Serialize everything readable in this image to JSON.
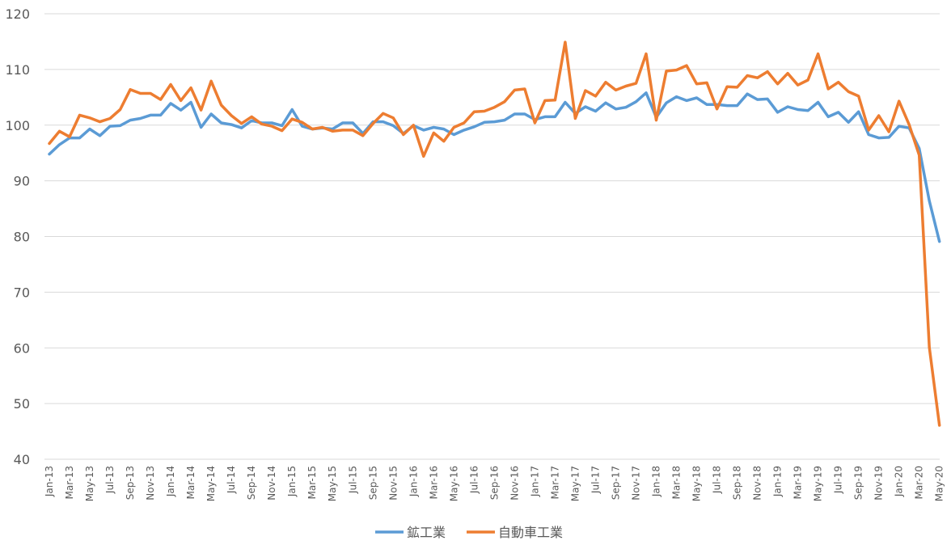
{
  "chart_data": {
    "type": "line",
    "title": "",
    "xlabel": "",
    "ylabel": "",
    "ylim": [
      40,
      120
    ],
    "yticks": [
      40,
      50,
      60,
      70,
      80,
      90,
      100,
      110,
      120
    ],
    "grid": true,
    "legend_position": "bottom",
    "x": [
      "Jan-13",
      "Feb-13",
      "Mar-13",
      "Apr-13",
      "May-13",
      "Jun-13",
      "Jul-13",
      "Aug-13",
      "Sep-13",
      "Oct-13",
      "Nov-13",
      "Dec-13",
      "Jan-14",
      "Feb-14",
      "Mar-14",
      "Apr-14",
      "May-14",
      "Jun-14",
      "Jul-14",
      "Aug-14",
      "Sep-14",
      "Oct-14",
      "Nov-14",
      "Dec-14",
      "Jan-15",
      "Feb-15",
      "Mar-15",
      "Apr-15",
      "May-15",
      "Jun-15",
      "Jul-15",
      "Aug-15",
      "Sep-15",
      "Oct-15",
      "Nov-15",
      "Dec-15",
      "Jan-16",
      "Feb-16",
      "Mar-16",
      "Apr-16",
      "May-16",
      "Jun-16",
      "Jul-16",
      "Aug-16",
      "Sep-16",
      "Oct-16",
      "Nov-16",
      "Dec-16",
      "Jan-17",
      "Feb-17",
      "Mar-17",
      "Apr-17",
      "May-17",
      "Jun-17",
      "Jul-17",
      "Aug-17",
      "Sep-17",
      "Oct-17",
      "Nov-17",
      "Dec-17",
      "Jan-18",
      "Feb-18",
      "Mar-18",
      "Apr-18",
      "May-18",
      "Jun-18",
      "Jul-18",
      "Aug-18",
      "Sep-18",
      "Oct-18",
      "Nov-18",
      "Dec-18",
      "Jan-19",
      "Feb-19",
      "Mar-19",
      "Apr-19",
      "May-19",
      "Jun-19",
      "Jul-19",
      "Aug-19",
      "Sep-19",
      "Oct-19",
      "Nov-19",
      "Dec-19",
      "Jan-20",
      "Feb-20",
      "Mar-20",
      "Apr-20",
      "May-20"
    ],
    "xtick_labels": [
      "Jan-13",
      "Mar-13",
      "May-13",
      "Jul-13",
      "Sep-13",
      "Nov-13",
      "Jan-14",
      "Mar-14",
      "May-14",
      "Jul-14",
      "Sep-14",
      "Nov-14",
      "Jan-15",
      "Mar-15",
      "May-15",
      "Jul-15",
      "Sep-15",
      "Nov-15",
      "Jan-16",
      "Mar-16",
      "May-16",
      "Jul-16",
      "Sep-16",
      "Nov-16",
      "Jan-17",
      "Mar-17",
      "May-17",
      "Jul-17",
      "Sep-17",
      "Nov-17",
      "Jan-18",
      "Mar-18",
      "May-18",
      "Jul-18",
      "Sep-18",
      "Nov-18",
      "Jan-19",
      "Mar-19",
      "May-19",
      "Jul-19",
      "Sep-19",
      "Nov-19",
      "Jan-20",
      "Mar-20",
      "May-20"
    ],
    "series": [
      {
        "name": "鉱工業",
        "color": "#5b9bd5",
        "values": [
          94.8,
          96.5,
          97.7,
          97.7,
          99.3,
          98.1,
          99.8,
          99.9,
          100.9,
          101.2,
          101.8,
          101.8,
          103.9,
          102.7,
          104.1,
          99.6,
          102.0,
          100.4,
          100.1,
          99.5,
          100.8,
          100.4,
          100.4,
          99.9,
          102.8,
          99.8,
          99.3,
          99.5,
          99.3,
          100.4,
          100.4,
          98.5,
          100.6,
          100.6,
          99.9,
          98.5,
          99.9,
          99.1,
          99.6,
          99.3,
          98.3,
          99.1,
          99.7,
          100.5,
          100.6,
          100.9,
          102.0,
          102.0,
          101.0,
          101.5,
          101.5,
          104.1,
          102.1,
          103.3,
          102.5,
          104.0,
          102.9,
          103.2,
          104.2,
          105.8,
          101.4,
          104.0,
          105.1,
          104.4,
          104.9,
          103.7,
          103.7,
          103.5,
          103.5,
          105.6,
          104.6,
          104.7,
          102.3,
          103.3,
          102.8,
          102.6,
          104.1,
          101.5,
          102.3,
          100.5,
          102.4,
          98.3,
          97.7,
          97.8,
          99.8,
          99.5,
          95.8,
          86.4,
          79.1
        ]
      },
      {
        "name": "自動車工業",
        "color": "#ed7d31",
        "values": [
          96.7,
          98.9,
          97.9,
          101.8,
          101.3,
          100.6,
          101.2,
          102.8,
          106.4,
          105.7,
          105.7,
          104.6,
          107.3,
          104.4,
          106.7,
          102.7,
          107.9,
          103.6,
          101.7,
          100.3,
          101.5,
          100.2,
          99.8,
          99.0,
          101.1,
          100.5,
          99.3,
          99.6,
          98.9,
          99.1,
          99.1,
          98.1,
          100.3,
          102.1,
          101.3,
          98.3,
          100.0,
          94.4,
          98.6,
          97.1,
          99.6,
          100.4,
          102.4,
          102.5,
          103.2,
          104.2,
          106.3,
          106.5,
          100.4,
          104.4,
          104.5,
          114.9,
          101.2,
          106.2,
          105.2,
          107.7,
          106.3,
          107.0,
          107.5,
          112.8,
          100.9,
          109.7,
          109.9,
          110.7,
          107.4,
          107.6,
          102.9,
          106.9,
          106.8,
          108.9,
          108.5,
          109.6,
          107.4,
          109.3,
          107.2,
          108.1,
          112.8,
          106.5,
          107.7,
          106.0,
          105.2,
          99.1,
          101.7,
          98.8,
          104.3,
          100.1,
          94.6,
          60.1,
          46.1
        ]
      }
    ]
  }
}
